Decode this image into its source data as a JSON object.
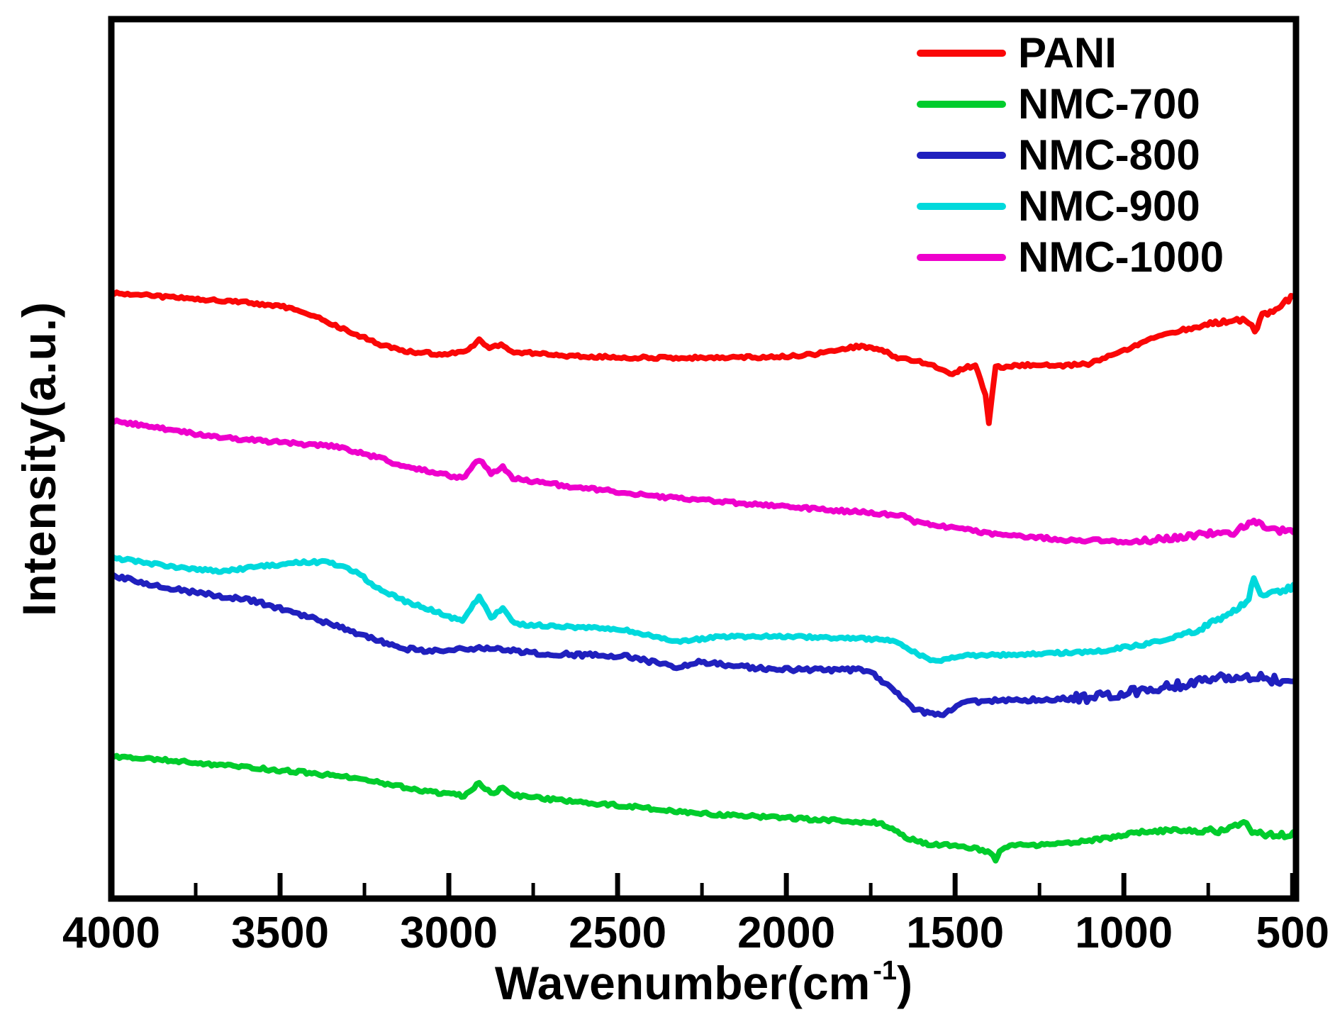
{
  "figure": {
    "ylabel": "Intensity(a.u.)",
    "xlabel_main": "Wavenumber(cm",
    "xlabel_sup": "-1",
    "xlabel_end": ")"
  },
  "legend": {
    "items": [
      {
        "label": "PANI",
        "color": "#FA0707"
      },
      {
        "label": "NMC-700",
        "color": "#00CC2C"
      },
      {
        "label": "NMC-800",
        "color": "#2020BE"
      },
      {
        "label": "NMC-900",
        "color": "#00D9DC"
      },
      {
        "label": "NMC-1000",
        "color": "#EE00CC"
      }
    ]
  },
  "chart_data": {
    "type": "line",
    "title": "",
    "xlabel": "Wavenumber(cm-1)",
    "ylabel": "Intensity(a.u.)",
    "x_axis": {
      "min": 490,
      "max": 4000,
      "reversed": true,
      "unit": "cm-1"
    },
    "y_axis": {
      "label": "Intensity(a.u.)",
      "unit": "a.u.",
      "normalized_range": [
        0,
        1
      ],
      "tick_labels": "none"
    },
    "x_tick_labels": [
      "4000",
      "3500",
      "3000",
      "2500",
      "2000",
      "1500",
      "1000",
      "500"
    ],
    "x_tick_values": [
      4000,
      3500,
      3000,
      2500,
      2000,
      1500,
      1000,
      500
    ],
    "x_minor_tick_values": [
      3750,
      3250,
      2750,
      2250,
      1750,
      1250,
      750
    ],
    "grid": false,
    "legend_position": "top-right",
    "series": [
      {
        "name": "PANI",
        "color": "#FA0707",
        "noise": 0.0016,
        "noise_wn": 750,
        "noise_gain": 1.9,
        "points": [
          [
            4000,
            0.689
          ],
          [
            3800,
            0.683
          ],
          [
            3600,
            0.678
          ],
          [
            3490,
            0.673
          ],
          [
            3400,
            0.663
          ],
          [
            3320,
            0.649
          ],
          [
            3210,
            0.631
          ],
          [
            3130,
            0.622
          ],
          [
            3020,
            0.619
          ],
          [
            2950,
            0.621
          ],
          [
            2910,
            0.636
          ],
          [
            2880,
            0.625
          ],
          [
            2845,
            0.63
          ],
          [
            2815,
            0.622
          ],
          [
            2650,
            0.617
          ],
          [
            2440,
            0.615
          ],
          [
            2230,
            0.615
          ],
          [
            2020,
            0.616
          ],
          [
            1915,
            0.619
          ],
          [
            1785,
            0.628
          ],
          [
            1725,
            0.625
          ],
          [
            1670,
            0.615
          ],
          [
            1630,
            0.612
          ],
          [
            1580,
            0.609
          ],
          [
            1515,
            0.596
          ],
          [
            1470,
            0.604
          ],
          [
            1440,
            0.606
          ],
          [
            1410,
            0.572
          ],
          [
            1400,
            0.542
          ],
          [
            1390,
            0.572
          ],
          [
            1380,
            0.604
          ],
          [
            1285,
            0.607
          ],
          [
            1180,
            0.606
          ],
          [
            1105,
            0.608
          ],
          [
            1030,
            0.619
          ],
          [
            880,
            0.642
          ],
          [
            760,
            0.652
          ],
          [
            665,
            0.659
          ],
          [
            630,
            0.657
          ],
          [
            612,
            0.643
          ],
          [
            590,
            0.663
          ],
          [
            550,
            0.671
          ],
          [
            490,
            0.687
          ]
        ]
      },
      {
        "name": "NMC-700",
        "color": "#00CC2C",
        "noise": 0.0018,
        "noise_wn": 800,
        "noise_gain": 1.8,
        "points": [
          [
            4000,
            0.162
          ],
          [
            3800,
            0.156
          ],
          [
            3590,
            0.149
          ],
          [
            3445,
            0.144
          ],
          [
            3320,
            0.139
          ],
          [
            3205,
            0.132
          ],
          [
            3110,
            0.125
          ],
          [
            3015,
            0.119
          ],
          [
            2955,
            0.117
          ],
          [
            2910,
            0.131
          ],
          [
            2875,
            0.12
          ],
          [
            2840,
            0.125
          ],
          [
            2805,
            0.117
          ],
          [
            2650,
            0.111
          ],
          [
            2440,
            0.104
          ],
          [
            2300,
            0.098
          ],
          [
            2230,
            0.096
          ],
          [
            2020,
            0.092
          ],
          [
            1810,
            0.088
          ],
          [
            1725,
            0.086
          ],
          [
            1640,
            0.069
          ],
          [
            1580,
            0.062
          ],
          [
            1475,
            0.06
          ],
          [
            1395,
            0.052
          ],
          [
            1380,
            0.044
          ],
          [
            1368,
            0.054
          ],
          [
            1330,
            0.06
          ],
          [
            1180,
            0.062
          ],
          [
            1055,
            0.068
          ],
          [
            970,
            0.075
          ],
          [
            845,
            0.078
          ],
          [
            720,
            0.077
          ],
          [
            645,
            0.088
          ],
          [
            612,
            0.074
          ],
          [
            549,
            0.072
          ],
          [
            490,
            0.073
          ]
        ]
      },
      {
        "name": "NMC-800",
        "color": "#2020BE",
        "noise": 0.0022,
        "noise_wn": 1150,
        "noise_gain": 2.6,
        "points": [
          [
            4000,
            0.367
          ],
          [
            3800,
            0.351
          ],
          [
            3640,
            0.342
          ],
          [
            3570,
            0.338
          ],
          [
            3485,
            0.328
          ],
          [
            3380,
            0.316
          ],
          [
            3275,
            0.302
          ],
          [
            3215,
            0.294
          ],
          [
            3130,
            0.284
          ],
          [
            3025,
            0.281
          ],
          [
            2910,
            0.285
          ],
          [
            2840,
            0.283
          ],
          [
            2730,
            0.279
          ],
          [
            2605,
            0.277
          ],
          [
            2480,
            0.276
          ],
          [
            2325,
            0.263
          ],
          [
            2260,
            0.269
          ],
          [
            2060,
            0.261
          ],
          [
            1890,
            0.26
          ],
          [
            1755,
            0.26
          ],
          [
            1685,
            0.238
          ],
          [
            1630,
            0.217
          ],
          [
            1575,
            0.21
          ],
          [
            1535,
            0.209
          ],
          [
            1480,
            0.223
          ],
          [
            1390,
            0.225
          ],
          [
            1180,
            0.227
          ],
          [
            1055,
            0.23
          ],
          [
            970,
            0.235
          ],
          [
            865,
            0.241
          ],
          [
            760,
            0.248
          ],
          [
            635,
            0.253
          ],
          [
            570,
            0.25
          ],
          [
            490,
            0.249
          ]
        ]
      },
      {
        "name": "NMC-900",
        "color": "#00D9DC",
        "noise": 0.0016,
        "noise_wn": 800,
        "noise_gain": 1.8,
        "points": [
          [
            4000,
            0.388
          ],
          [
            3800,
            0.376
          ],
          [
            3675,
            0.372
          ],
          [
            3570,
            0.377
          ],
          [
            3445,
            0.382
          ],
          [
            3360,
            0.383
          ],
          [
            3275,
            0.372
          ],
          [
            3215,
            0.354
          ],
          [
            3130,
            0.338
          ],
          [
            3045,
            0.327
          ],
          [
            2960,
            0.315
          ],
          [
            2910,
            0.344
          ],
          [
            2875,
            0.319
          ],
          [
            2840,
            0.331
          ],
          [
            2805,
            0.312
          ],
          [
            2650,
            0.309
          ],
          [
            2480,
            0.306
          ],
          [
            2330,
            0.292
          ],
          [
            2185,
            0.298
          ],
          [
            2020,
            0.298
          ],
          [
            1810,
            0.296
          ],
          [
            1685,
            0.294
          ],
          [
            1620,
            0.28
          ],
          [
            1565,
            0.27
          ],
          [
            1470,
            0.276
          ],
          [
            1285,
            0.278
          ],
          [
            1075,
            0.281
          ],
          [
            925,
            0.29
          ],
          [
            775,
            0.306
          ],
          [
            675,
            0.327
          ],
          [
            630,
            0.34
          ],
          [
            615,
            0.367
          ],
          [
            595,
            0.344
          ],
          [
            560,
            0.348
          ],
          [
            490,
            0.355
          ]
        ]
      },
      {
        "name": "NMC-1000",
        "color": "#EE00CC",
        "noise": 0.0018,
        "noise_wn": 950,
        "noise_gain": 1.8,
        "points": [
          [
            4000,
            0.544
          ],
          [
            3800,
            0.531
          ],
          [
            3640,
            0.523
          ],
          [
            3445,
            0.517
          ],
          [
            3340,
            0.514
          ],
          [
            3215,
            0.502
          ],
          [
            3150,
            0.494
          ],
          [
            3025,
            0.483
          ],
          [
            2960,
            0.478
          ],
          [
            2910,
            0.499
          ],
          [
            2875,
            0.483
          ],
          [
            2840,
            0.491
          ],
          [
            2810,
            0.478
          ],
          [
            2650,
            0.469
          ],
          [
            2375,
            0.457
          ],
          [
            2020,
            0.446
          ],
          [
            1660,
            0.436
          ],
          [
            1620,
            0.428
          ],
          [
            1535,
            0.423
          ],
          [
            1390,
            0.415
          ],
          [
            1180,
            0.408
          ],
          [
            970,
            0.406
          ],
          [
            865,
            0.409
          ],
          [
            760,
            0.415
          ],
          [
            675,
            0.415
          ],
          [
            615,
            0.431
          ],
          [
            570,
            0.418
          ],
          [
            490,
            0.419
          ]
        ]
      }
    ]
  }
}
